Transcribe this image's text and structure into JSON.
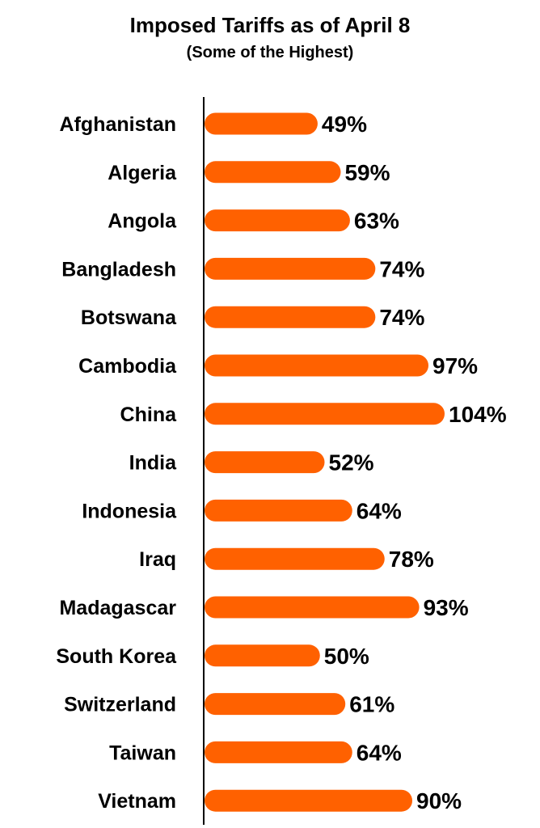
{
  "chart_data": {
    "type": "bar",
    "orientation": "horizontal",
    "title": "Imposed Tariffs as of April 8",
    "subtitle": "(Some of the Highest)",
    "categories": [
      "Afghanistan",
      "Algeria",
      "Angola",
      "Bangladesh",
      "Botswana",
      "Cambodia",
      "China",
      "India",
      "Indonesia",
      "Iraq",
      "Madagascar",
      "South Korea",
      "Switzerland",
      "Taiwan",
      "Vietnam"
    ],
    "values": [
      49,
      59,
      63,
      74,
      74,
      97,
      104,
      52,
      64,
      78,
      93,
      50,
      61,
      64,
      90
    ],
    "value_labels": [
      "49%",
      "59%",
      "63%",
      "74%",
      "74%",
      "97%",
      "104%",
      "52%",
      "64%",
      "78%",
      "93%",
      "50%",
      "61%",
      "64%",
      "90%"
    ],
    "bar_color": "#ff6100",
    "axis_color": "#000000",
    "xlim": [
      0,
      104
    ],
    "grid": false,
    "legend": "none"
  }
}
